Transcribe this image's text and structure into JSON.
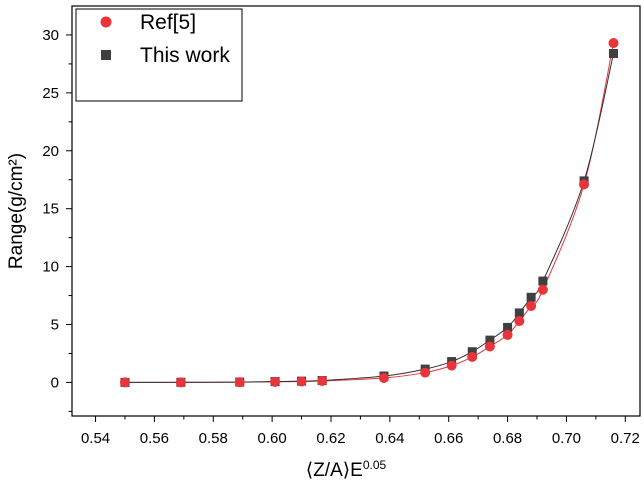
{
  "chart_data": {
    "type": "scatter",
    "xlabel": "⟨Z/A⟩E",
    "xlabel_superscript": "0.05",
    "ylabel": "Range(g/cm²)",
    "xlim": [
      0.532,
      0.725
    ],
    "ylim": [
      -2.9,
      32.5
    ],
    "x_ticks": [
      0.54,
      0.56,
      0.58,
      0.6,
      0.62,
      0.64,
      0.66,
      0.68,
      0.7,
      0.72
    ],
    "x_tick_labels": [
      "0.54",
      "0.56",
      "0.58",
      "0.60",
      "0.62",
      "0.64",
      "0.66",
      "0.68",
      "0.70",
      "0.72"
    ],
    "y_ticks": [
      0,
      5,
      10,
      15,
      20,
      25,
      30
    ],
    "y_tick_labels": [
      "0",
      "5",
      "10",
      "15",
      "20",
      "25",
      "30"
    ],
    "grid": false,
    "legend_position": "top-left",
    "series": [
      {
        "name": "Ref[5]",
        "marker": "circle",
        "color": "#e8353b",
        "line_color": "#e8353b",
        "x": [
          0.55,
          0.569,
          0.589,
          0.601,
          0.61,
          0.617,
          0.638,
          0.652,
          0.661,
          0.668,
          0.674,
          0.68,
          0.684,
          0.688,
          0.692,
          0.706,
          0.716
        ],
        "y": [
          0.0,
          0.0,
          0.02,
          0.05,
          0.08,
          0.12,
          0.38,
          0.85,
          1.45,
          2.2,
          3.1,
          4.1,
          5.3,
          6.6,
          8.0,
          17.1,
          29.3
        ]
      },
      {
        "name": "This work",
        "marker": "square",
        "color": "#3f3f3f",
        "line_color": "#303030",
        "x": [
          0.55,
          0.569,
          0.589,
          0.601,
          0.61,
          0.617,
          0.638,
          0.652,
          0.661,
          0.668,
          0.674,
          0.68,
          0.684,
          0.688,
          0.692,
          0.706,
          0.716
        ],
        "y": [
          0.0,
          0.01,
          0.03,
          0.07,
          0.11,
          0.16,
          0.55,
          1.15,
          1.8,
          2.65,
          3.65,
          4.75,
          6.0,
          7.35,
          8.75,
          17.4,
          28.4
        ]
      }
    ]
  }
}
